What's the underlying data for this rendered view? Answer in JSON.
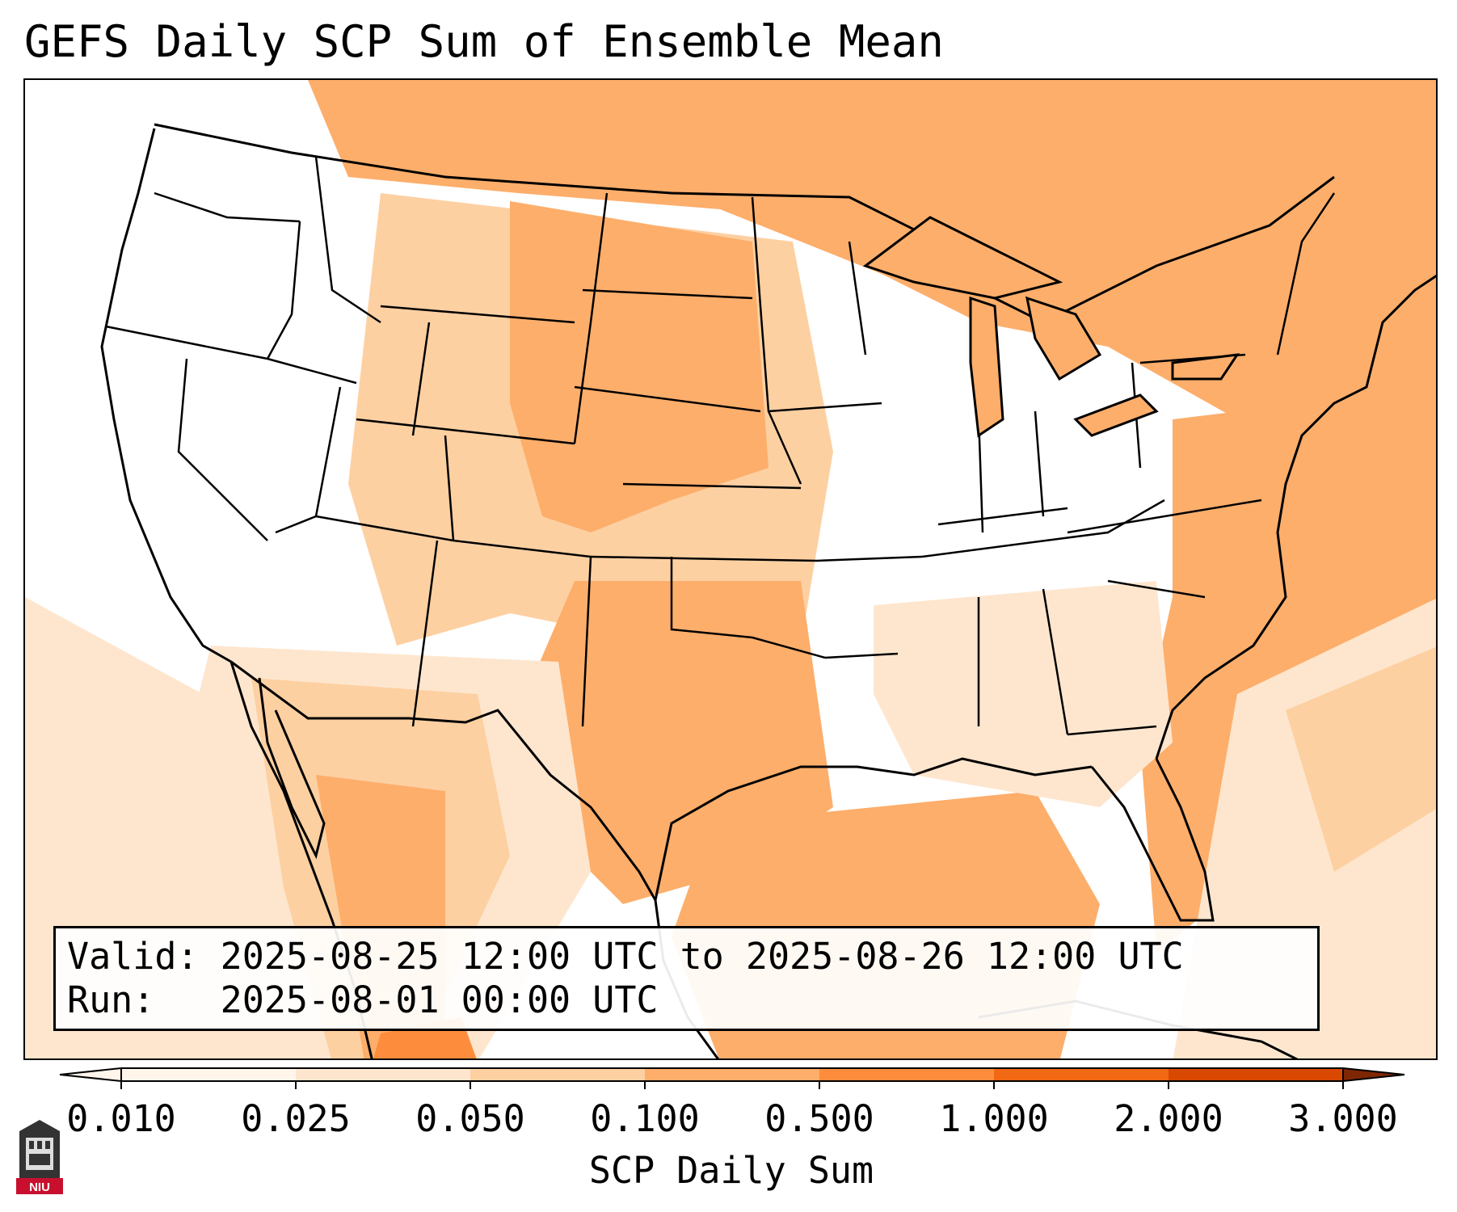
{
  "title": "GEFS Daily SCP Sum of Ensemble Mean",
  "info": {
    "valid_label": "Valid:",
    "valid_range": "2025-08-25 12:00 UTC to 2025-08-26 12:00 UTC",
    "run_label": "Run:",
    "run_time": "2025-08-01 00:00 UTC"
  },
  "colorbar": {
    "label": "SCP Daily Sum",
    "ticks": [
      "0.010",
      "0.025",
      "0.050",
      "0.100",
      "0.500",
      "1.000",
      "2.000",
      "3.000"
    ],
    "colors": [
      "#fff5eb",
      "#fee6ce",
      "#fdd0a2",
      "#fdae6b",
      "#fd8d3c",
      "#f16913",
      "#d94801"
    ],
    "extend": "both"
  },
  "logo": {
    "text": "NIU"
  },
  "colors": {
    "accent": "#fdae6b",
    "light": "#fdd0a2",
    "pale": "#fee6ce",
    "strong": "#fd8d3c",
    "boundary": "#000000"
  }
}
